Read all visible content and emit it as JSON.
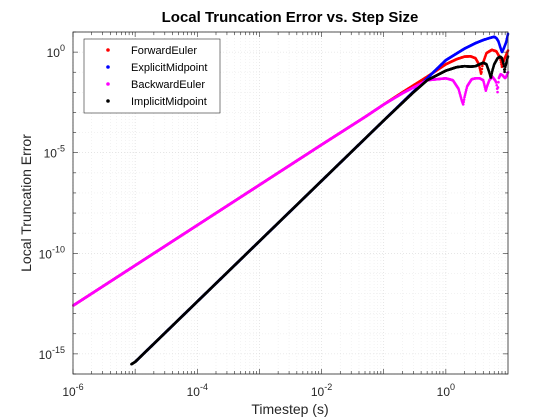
{
  "chart_data": {
    "type": "scatter",
    "title": "Local Truncation Error vs. Step Size",
    "xlabel": "Timestep (s)",
    "ylabel": "Local Truncation Error",
    "xscale": "log",
    "yscale": "log",
    "xlim": [
      1e-06,
      10
    ],
    "ylim": [
      1e-16,
      10
    ],
    "grid": true,
    "legend_position": "top-left",
    "x_ticks": [
      {
        "base": "10",
        "exp": "-6",
        "value": 1e-06
      },
      {
        "base": "10",
        "exp": "-4",
        "value": 0.0001
      },
      {
        "base": "10",
        "exp": "-2",
        "value": 0.01
      },
      {
        "base": "10",
        "exp": "0",
        "value": 1
      }
    ],
    "y_ticks": [
      {
        "base": "10",
        "exp": "0",
        "value": 1
      },
      {
        "base": "10",
        "exp": "-5",
        "value": 1e-05
      },
      {
        "base": "10",
        "exp": "-10",
        "value": 1e-10
      },
      {
        "base": "10",
        "exp": "-15",
        "value": 1e-15
      }
    ],
    "series": [
      {
        "name": "ForwardEuler",
        "color": "#ff0000",
        "points": [
          [
            1e-06,
            2.5e-13
          ],
          [
            1e-05,
            2.5e-11
          ],
          [
            0.0001,
            2.5e-09
          ],
          [
            0.001,
            2.5e-07
          ],
          [
            0.01,
            2.5e-05
          ],
          [
            0.05,
            0.0006
          ],
          [
            0.1,
            0.0025
          ],
          [
            0.2,
            0.01
          ],
          [
            0.5,
            0.06
          ],
          [
            1,
            0.25
          ],
          [
            1.5,
            0.45
          ],
          [
            2,
            0.6
          ],
          [
            2.5,
            0.62
          ],
          [
            3,
            0.5
          ],
          [
            3.4,
            0.25
          ],
          [
            3.7,
            0.08
          ],
          [
            3.9,
            0.25
          ],
          [
            4.5,
            0.9
          ],
          [
            5.5,
            1.3
          ],
          [
            6.5,
            1.1
          ],
          [
            7.5,
            0.5
          ],
          [
            8,
            0.18
          ],
          [
            8.6,
            0.4
          ],
          [
            10,
            1.2
          ]
        ]
      },
      {
        "name": "ExplicitMidpoint",
        "color": "#0000ff",
        "points": [
          [
            1e-05,
            4e-16
          ],
          [
            0.0001,
            4e-13
          ],
          [
            0.001,
            4e-10
          ],
          [
            0.01,
            4e-07
          ],
          [
            0.1,
            0.0004
          ],
          [
            0.5,
            0.05
          ],
          [
            1,
            0.4
          ],
          [
            2,
            1.5
          ],
          [
            3,
            2.8
          ],
          [
            4,
            4
          ],
          [
            5,
            5
          ],
          [
            6,
            5.8
          ],
          [
            6.5,
            5
          ],
          [
            7,
            3.5
          ],
          [
            7.5,
            1.8
          ],
          [
            8,
            1
          ],
          [
            8.6,
            1.6
          ],
          [
            9.3,
            3
          ],
          [
            10,
            8
          ]
        ]
      },
      {
        "name": "BackwardEuler",
        "color": "#ff00ff",
        "points": [
          [
            1e-06,
            2.5e-13
          ],
          [
            1e-05,
            2.5e-11
          ],
          [
            0.0001,
            2.5e-09
          ],
          [
            0.001,
            2.5e-07
          ],
          [
            0.01,
            2.5e-05
          ],
          [
            0.05,
            0.0006
          ],
          [
            0.1,
            0.0025
          ],
          [
            0.2,
            0.009
          ],
          [
            0.5,
            0.04
          ],
          [
            1,
            0.05
          ],
          [
            1.3,
            0.04
          ],
          [
            1.6,
            0.015
          ],
          [
            1.8,
            0.004
          ],
          [
            1.9,
            0.0025
          ],
          [
            2.0,
            0.006
          ],
          [
            2.2,
            0.02
          ],
          [
            2.6,
            0.045
          ],
          [
            3,
            0.05
          ],
          [
            3.5,
            0.05
          ],
          [
            4,
            0.04
          ],
          [
            4.4,
            0.012
          ],
          [
            4.6,
            0.02
          ],
          [
            5,
            0.04
          ],
          [
            5.6,
            0.06
          ],
          [
            6.2,
            0.04
          ],
          [
            6.5,
            0.03
          ],
          [
            6.8,
            0.01
          ],
          [
            7.1,
            0.05
          ],
          [
            7.6,
            0.08
          ],
          [
            8.2,
            0.07
          ],
          [
            9,
            0.05
          ],
          [
            9.6,
            0.07
          ],
          [
            10,
            0.1
          ]
        ]
      },
      {
        "name": "ImplicitMidpoint",
        "color": "#000000",
        "points": [
          [
            8.6e-06,
            3e-16
          ],
          [
            1e-05,
            4e-16
          ],
          [
            0.0001,
            4e-13
          ],
          [
            0.001,
            4e-10
          ],
          [
            0.01,
            4e-07
          ],
          [
            0.1,
            0.0004
          ],
          [
            0.3,
            0.01
          ],
          [
            0.5,
            0.04
          ],
          [
            1,
            0.12
          ],
          [
            1.5,
            0.18
          ],
          [
            2,
            0.2
          ],
          [
            2.5,
            0.19
          ],
          [
            3,
            0.2
          ],
          [
            3.5,
            0.25
          ],
          [
            4,
            0.3
          ],
          [
            4.5,
            0.25
          ],
          [
            5,
            0.1
          ],
          [
            5.3,
            0.05
          ],
          [
            5.6,
            0.12
          ],
          [
            6,
            0.25
          ],
          [
            6.8,
            0.5
          ],
          [
            7.5,
            0.6
          ],
          [
            8,
            0.5
          ],
          [
            8.5,
            0.25
          ],
          [
            8.8,
            0.1
          ],
          [
            9.1,
            0.2
          ],
          [
            10,
            0.6
          ]
        ]
      }
    ]
  }
}
